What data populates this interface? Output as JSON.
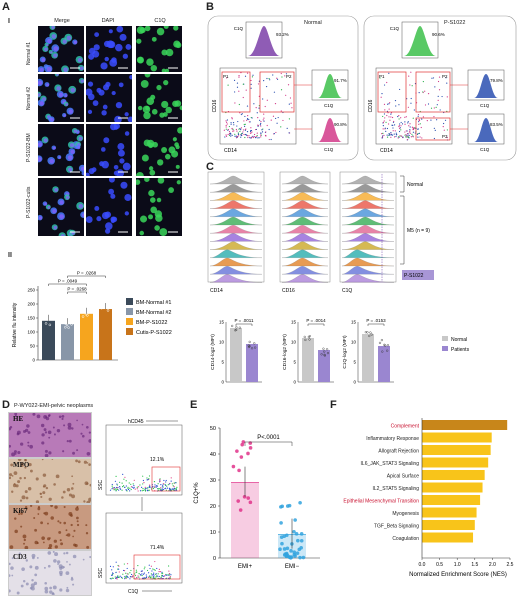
{
  "panels": {
    "A": "A",
    "B": "B",
    "C": "C",
    "D": "D",
    "E": "E",
    "F": "F"
  },
  "panelA": {
    "sub_I": "I",
    "sub_II": "II",
    "columns": [
      "Merge",
      "DAPI",
      "C1Q"
    ],
    "rows": [
      "Normal #1",
      "Normal #2",
      "P-S1022-BM",
      "P-S1022-cutis"
    ],
    "scale": "10 μm",
    "bar": {
      "ylabel": "Relative flu intensity",
      "yticks": [
        "0",
        "50",
        "100",
        "150",
        "200",
        "250"
      ],
      "ymax": 250,
      "values": [
        140,
        128,
        165,
        182
      ],
      "colors": [
        "#3b4a5a",
        "#8896a8",
        "#f6a51e",
        "#c8741a"
      ],
      "legend": [
        "BM-Normal #1",
        "BM-Normal #2",
        "BM-P-S1022",
        "Cutis-P-S1022"
      ],
      "pvalues": [
        "P = .0268",
        "P = .0049",
        "P = .0268"
      ]
    }
  },
  "panelB": {
    "normal": {
      "title": "Normal",
      "c1q_top": "93.2%",
      "p1": "P1",
      "p2": "P2",
      "right1": "91.7%",
      "right2": "90.8%"
    },
    "patient": {
      "title": "P-S1022",
      "c1q_top": "90.6%",
      "p1": "P1",
      "p2": "P2",
      "p3": "P3",
      "right1": "79.8%",
      "right2": "83.5%"
    },
    "axis_c1q": "C1Q",
    "axis_cd16": "CD16",
    "axis_cd14": "CD14"
  },
  "panelC": {
    "group_normal": "Normal",
    "group_m5": "M5 (n = 9)",
    "group_patient": "P-S1022",
    "cols": [
      "CD14",
      "CD16",
      "C1Q"
    ],
    "bars": [
      {
        "ylabel": "CD14-log2 (MFI)",
        "p": "P = .0011",
        "yticks": [
          "0",
          "5",
          "10",
          "15"
        ],
        "ymax": 15,
        "normal": 13.5,
        "patients": 9.5
      },
      {
        "ylabel": "CD16-log2 (MFI)",
        "p": "P = .0014",
        "yticks": [
          "0",
          "5",
          "10",
          "15"
        ],
        "ymax": 15,
        "normal": 11,
        "patients": 8
      },
      {
        "ylabel": "C1Q-log2 (MFI)",
        "p": "P = .0153",
        "yticks": [
          "0",
          "5",
          "10",
          "15"
        ],
        "ymax": 15,
        "normal": 12,
        "patients": 9
      }
    ],
    "legend": [
      "Normal",
      "Patients"
    ]
  },
  "panelD": {
    "title": "P-WY022-EMI-pelvic neoplasms",
    "stains": [
      "HE",
      "MPO",
      "Ki67",
      "CD3"
    ],
    "hcd45": "hCD45",
    "ssc": "SSC",
    "c1q": "C1Q",
    "pct1": "12.1%",
    "pct2": "71.4%"
  },
  "panelE": {
    "ylabel": "C1Q+%",
    "yticks": [
      "0",
      "10",
      "20",
      "30",
      "40",
      "50"
    ],
    "ymax": 50,
    "p": "P<.0001",
    "categories": [
      "EMI+",
      "EMI−"
    ],
    "means": [
      29,
      9
    ],
    "colors": [
      "#e0328a",
      "#33a3de"
    ]
  },
  "panelF": {
    "xlabel": "Normalized Enrichment Score (NES)",
    "xticks": [
      "0.0",
      "0.5",
      "1.0",
      "1.5",
      "2.0",
      "2.5"
    ],
    "xmax": 2.5,
    "terms": [
      "Complement",
      "Inflammatory Response",
      "Allograft Rejection",
      "IL6_JAK_STAT3 Signaling",
      "Apical Surface",
      "IL2_STAT5 Signaling",
      "Epithelial Mesenchymal Transition",
      "Myogenesis",
      "TGF_Beta Signaling",
      "Coagulation"
    ],
    "values": [
      2.42,
      1.98,
      1.95,
      1.88,
      1.78,
      1.72,
      1.65,
      1.55,
      1.5,
      1.45
    ],
    "highlight_color": "#c8102e",
    "top_color": "#c8861a",
    "bar_color": "#f8c41a"
  }
}
